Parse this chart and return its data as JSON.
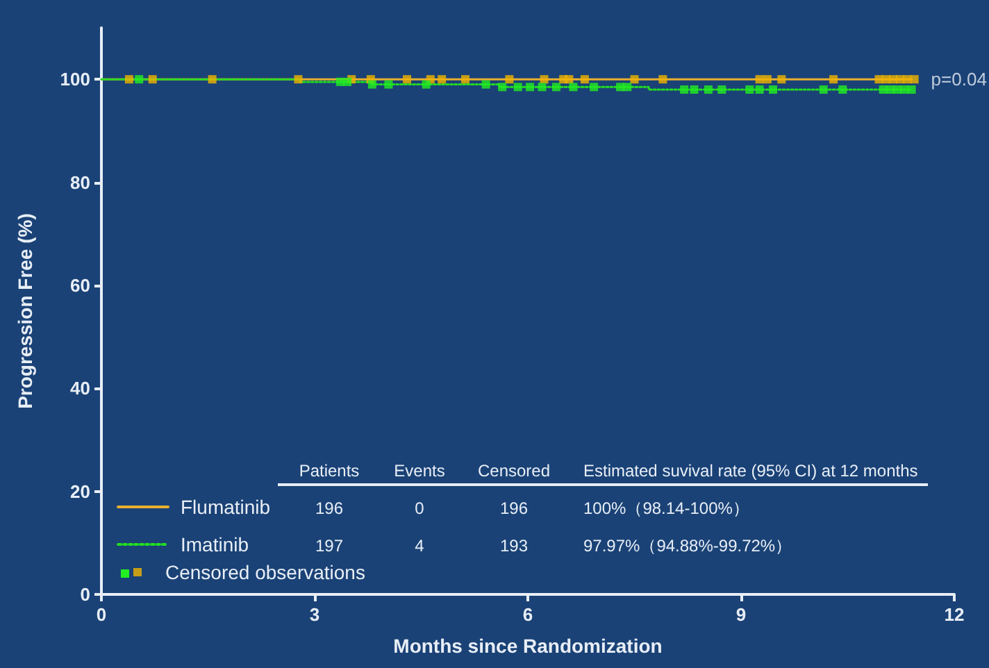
{
  "chart_data": {
    "type": "step",
    "xlabel": "Months since Randomization",
    "ylabel": "Progression Free (%)",
    "xlim": [
      0,
      12
    ],
    "xticks": [
      0,
      3,
      6,
      9,
      12
    ],
    "ylim": [
      0,
      110
    ],
    "yticks": [
      0,
      20,
      40,
      60,
      80,
      100
    ],
    "grid": false,
    "legend": "bottom left",
    "marker": "none",
    "series": [
      {
        "name": "Flumatinib",
        "color": "#e8b030",
        "line_style": "solid",
        "x": [
          0,
          11.4
        ],
        "values": [
          100,
          100
        ]
      },
      {
        "name": "Imatinib",
        "color": "#22dd22",
        "line_style": "dotted",
        "x": [
          0,
          2.8,
          3.8,
          5.6,
          7.7,
          11.4
        ],
        "values": [
          100,
          99.5,
          99,
          98.5,
          98,
          98
        ]
      },
      {
        "type": "scatter",
        "name": "Censored observations",
        "color": "#f0b400",
        "marker": "square",
        "x": [
          0.39,
          0.72,
          1.56,
          2.77,
          3.52,
          3.79,
          4.3,
          4.63,
          4.79,
          5.12,
          5.74,
          6.23,
          6.5,
          6.58,
          6.8,
          7.5,
          7.9,
          9.26,
          9.37,
          9.57,
          10.3,
          10.94,
          11.04,
          11.14,
          11.24,
          11.34,
          11.44
        ],
        "values": [
          100,
          100,
          100,
          100,
          100,
          100,
          100,
          100,
          100,
          100,
          100,
          100,
          100,
          100,
          100,
          100,
          100,
          100,
          100,
          100,
          100,
          100,
          100,
          100,
          100,
          100,
          100
        ]
      },
      {
        "type": "scatter",
        "color": "#22ee22",
        "marker": "square",
        "x": [
          0.53,
          3.36,
          3.46,
          3.81,
          4.04,
          4.57,
          5.41,
          5.64,
          5.86,
          6.03,
          6.2,
          6.4,
          6.64,
          6.93,
          7.3,
          7.4,
          8.2,
          8.34,
          8.54,
          8.73,
          9.12,
          9.26,
          9.45,
          10.16,
          10.43,
          11.0,
          11.1,
          11.2,
          11.3,
          11.4
        ],
        "values": [
          100,
          99.5,
          99.5,
          99,
          99,
          99,
          99,
          98.5,
          98.5,
          98.5,
          98.5,
          98.5,
          98.5,
          98.5,
          98.5,
          98.5,
          98,
          98,
          98,
          98,
          98,
          98,
          98,
          98,
          98,
          98,
          98,
          98,
          98,
          98
        ]
      }
    ],
    "annotations": [
      "Patients",
      "Events",
      "Censored",
      "Estimated suvival rate (95% CI) at 12 months",
      "196",
      "0",
      "196",
      "100%（98.14-100%）",
      "197",
      "4",
      "193",
      "97.97%（94.88%-99.72%）",
      {
        "text": "p=0.04",
        "x": 11.4,
        "y": 100
      }
    ]
  }
}
